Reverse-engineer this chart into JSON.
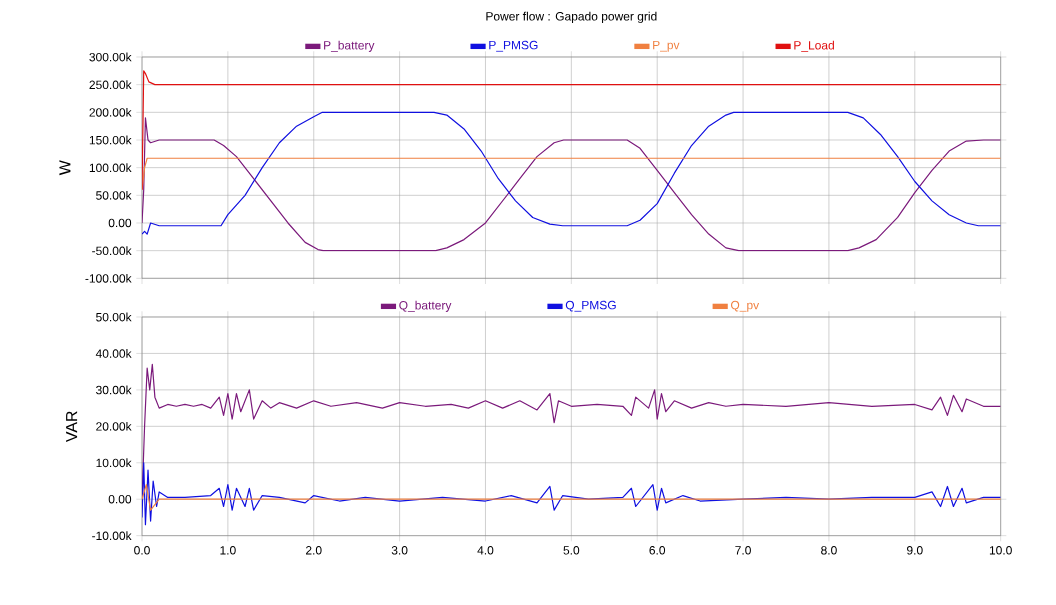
{
  "chart_data": [
    {
      "type": "line",
      "title": "Power flow : Gapado power grid",
      "ylabel": "W",
      "xlim": [
        0,
        10
      ],
      "xticks": [
        {
          "value": 0,
          "label": null
        },
        {
          "value": 1,
          "label": null
        },
        {
          "value": 2,
          "label": null
        },
        {
          "value": 3,
          "label": null
        },
        {
          "value": 4,
          "label": null
        },
        {
          "value": 5,
          "label": null
        },
        {
          "value": 6,
          "label": null
        },
        {
          "value": 7,
          "label": null
        },
        {
          "value": 8,
          "label": null
        },
        {
          "value": 9,
          "label": null
        },
        {
          "value": 10,
          "label": null
        }
      ],
      "ylim": [
        -100000,
        300000
      ],
      "yticks": [
        {
          "value": -100000,
          "label": "-100.00k"
        },
        {
          "value": -50000,
          "label": "-50.00k"
        },
        {
          "value": 0,
          "label": "0.00"
        },
        {
          "value": 50000,
          "label": "50.00k"
        },
        {
          "value": 100000,
          "label": "100.00k"
        },
        {
          "value": 150000,
          "label": "150.00k"
        },
        {
          "value": 200000,
          "label": "200.00k"
        },
        {
          "value": 250000,
          "label": "250.00k"
        },
        {
          "value": 300000,
          "label": "300.00k"
        }
      ],
      "grid": true,
      "legend": "top",
      "tick_labels": "y",
      "series": [
        {
          "name": "P_battery",
          "color": "#7b1a7b",
          "x": [
            0,
            0.02,
            0.04,
            0.07,
            0.1,
            0.2,
            0.5,
            0.84,
            0.95,
            1.1,
            1.3,
            1.5,
            1.7,
            1.9,
            2.05,
            2.11,
            2.5,
            3.0,
            3.42,
            3.55,
            3.75,
            4.0,
            4.2,
            4.4,
            4.6,
            4.8,
            4.91,
            5.3,
            5.65,
            5.8,
            6.0,
            6.2,
            6.4,
            6.6,
            6.8,
            6.95,
            7.5,
            8.0,
            8.22,
            8.35,
            8.55,
            8.8,
            9.0,
            9.2,
            9.4,
            9.6,
            9.8,
            10
          ],
          "values": [
            0,
            60000,
            190000,
            150000,
            145000,
            150000,
            150000,
            150000,
            140000,
            120000,
            80000,
            40000,
            0,
            -35000,
            -48000,
            -50000,
            -50000,
            -50000,
            -50000,
            -45000,
            -30000,
            0,
            40000,
            80000,
            120000,
            145000,
            150000,
            150000,
            150000,
            135000,
            95000,
            55000,
            15000,
            -20000,
            -45000,
            -50000,
            -50000,
            -50000,
            -50000,
            -45000,
            -30000,
            10000,
            55000,
            95000,
            130000,
            148000,
            150000,
            150000
          ]
        },
        {
          "name": "P_PMSG",
          "color": "#1010e0",
          "x": [
            0,
            0.03,
            0.06,
            0.1,
            0.2,
            0.5,
            0.92,
            1.0,
            1.2,
            1.4,
            1.6,
            1.8,
            2.0,
            2.1,
            2.5,
            3.0,
            3.4,
            3.55,
            3.75,
            3.95,
            4.15,
            4.35,
            4.55,
            4.75,
            4.9,
            5.3,
            5.65,
            5.8,
            6.0,
            6.2,
            6.4,
            6.6,
            6.8,
            6.89,
            7.5,
            8.0,
            8.22,
            8.4,
            8.6,
            8.8,
            9.0,
            9.2,
            9.4,
            9.6,
            9.74,
            10
          ],
          "values": [
            -20000,
            -15000,
            -20000,
            0,
            -5000,
            -5000,
            -5000,
            15000,
            50000,
            100000,
            145000,
            175000,
            192000,
            200000,
            200000,
            200000,
            200000,
            195000,
            170000,
            130000,
            80000,
            40000,
            10000,
            -2000,
            -5000,
            -5000,
            -5000,
            5000,
            35000,
            90000,
            140000,
            175000,
            195000,
            200000,
            200000,
            200000,
            200000,
            190000,
            160000,
            120000,
            75000,
            40000,
            15000,
            0,
            -5000,
            -5000
          ]
        },
        {
          "name": "P_pv",
          "color": "#f08040",
          "x": [
            0,
            0.03,
            0.06,
            10
          ],
          "values": [
            60000,
            100000,
            117000,
            117000
          ]
        },
        {
          "name": "P_Load",
          "color": "#e01010",
          "x": [
            0,
            0.02,
            0.04,
            0.08,
            0.15,
            10
          ],
          "values": [
            60000,
            275000,
            270000,
            255000,
            250000,
            250000
          ]
        }
      ]
    },
    {
      "type": "line",
      "ylabel": "VAR",
      "xlim": [
        0,
        10
      ],
      "xticks": [
        {
          "value": 0,
          "label": "0.0"
        },
        {
          "value": 1,
          "label": "1.0"
        },
        {
          "value": 2,
          "label": "2.0"
        },
        {
          "value": 3,
          "label": "3.0"
        },
        {
          "value": 4,
          "label": "4.0"
        },
        {
          "value": 5,
          "label": "5.0"
        },
        {
          "value": 6,
          "label": "6.0"
        },
        {
          "value": 7,
          "label": "7.0"
        },
        {
          "value": 8,
          "label": "8.0"
        },
        {
          "value": 9,
          "label": "9.0"
        },
        {
          "value": 10,
          "label": "10.0"
        }
      ],
      "ylim": [
        -10000,
        50000
      ],
      "yticks": [
        {
          "value": -10000,
          "label": "-10.00k"
        },
        {
          "value": 0,
          "label": "0.00"
        },
        {
          "value": 10000,
          "label": "10.00k"
        },
        {
          "value": 20000,
          "label": "20.00k"
        },
        {
          "value": 30000,
          "label": "30.00k"
        },
        {
          "value": 40000,
          "label": "40.00k"
        },
        {
          "value": 50000,
          "label": "50.00k"
        }
      ],
      "grid": true,
      "legend": "top",
      "series": [
        {
          "name": "Q_battery",
          "color": "#7b1a7b",
          "x": [
            0,
            0.03,
            0.06,
            0.09,
            0.12,
            0.15,
            0.2,
            0.3,
            0.4,
            0.5,
            0.6,
            0.7,
            0.8,
            0.9,
            0.95,
            1.0,
            1.05,
            1.1,
            1.15,
            1.25,
            1.3,
            1.4,
            1.5,
            1.6,
            1.8,
            2.0,
            2.2,
            2.5,
            2.8,
            3.0,
            3.3,
            3.6,
            3.8,
            4.0,
            4.2,
            4.4,
            4.6,
            4.75,
            4.8,
            4.85,
            5.0,
            5.3,
            5.6,
            5.7,
            5.75,
            5.9,
            5.97,
            6.0,
            6.05,
            6.1,
            6.2,
            6.4,
            6.6,
            6.8,
            7.0,
            7.5,
            8.0,
            8.5,
            9.0,
            9.2,
            9.3,
            9.38,
            9.45,
            9.55,
            9.6,
            9.8,
            10
          ],
          "values": [
            0,
            20000,
            36000,
            30000,
            37000,
            28000,
            25000,
            26000,
            25500,
            26000,
            25500,
            26000,
            25000,
            28000,
            23000,
            29000,
            22000,
            29000,
            24000,
            30000,
            22000,
            27000,
            25000,
            26500,
            25000,
            27000,
            25500,
            26500,
            25000,
            26500,
            25500,
            26000,
            25000,
            27000,
            25000,
            27000,
            24500,
            29000,
            21000,
            27000,
            25500,
            26000,
            25500,
            23000,
            28000,
            25000,
            30000,
            22000,
            29000,
            24000,
            27000,
            25000,
            26500,
            25500,
            26000,
            25500,
            26500,
            25500,
            26000,
            24500,
            28000,
            23000,
            28500,
            24000,
            27500,
            25500,
            25500
          ]
        },
        {
          "name": "Q_PMSG",
          "color": "#1010e0",
          "x": [
            0,
            0.02,
            0.04,
            0.07,
            0.1,
            0.13,
            0.17,
            0.2,
            0.3,
            0.5,
            0.8,
            0.9,
            0.95,
            1.0,
            1.05,
            1.1,
            1.2,
            1.25,
            1.3,
            1.4,
            1.6,
            1.9,
            2.0,
            2.3,
            2.6,
            3.0,
            3.5,
            4.0,
            4.3,
            4.6,
            4.75,
            4.8,
            4.9,
            5.2,
            5.6,
            5.7,
            5.75,
            5.95,
            6.0,
            6.05,
            6.1,
            6.3,
            6.5,
            7.0,
            7.5,
            8.0,
            8.5,
            9.0,
            9.2,
            9.3,
            9.38,
            9.45,
            9.55,
            9.6,
            9.8,
            10
          ],
          "values": [
            -5000,
            10000,
            -7000,
            8000,
            -6000,
            5000,
            -2000,
            2000,
            500,
            500,
            1000,
            3000,
            -2000,
            4000,
            -3000,
            3000,
            -2000,
            3000,
            -3000,
            1000,
            500,
            -1000,
            1000,
            -500,
            500,
            -500,
            500,
            -500,
            1000,
            -1000,
            3500,
            -3000,
            1000,
            0,
            500,
            3000,
            -2000,
            4000,
            -3000,
            3000,
            -1000,
            1000,
            -500,
            0,
            500,
            0,
            500,
            500,
            2000,
            -2000,
            3500,
            -2000,
            3000,
            -1000,
            500,
            500
          ]
        },
        {
          "name": "Q_pv",
          "color": "#f08040",
          "x": [
            0,
            0.05,
            0.1,
            0.2,
            10
          ],
          "values": [
            0,
            4000,
            -3000,
            0,
            0
          ]
        }
      ]
    }
  ]
}
